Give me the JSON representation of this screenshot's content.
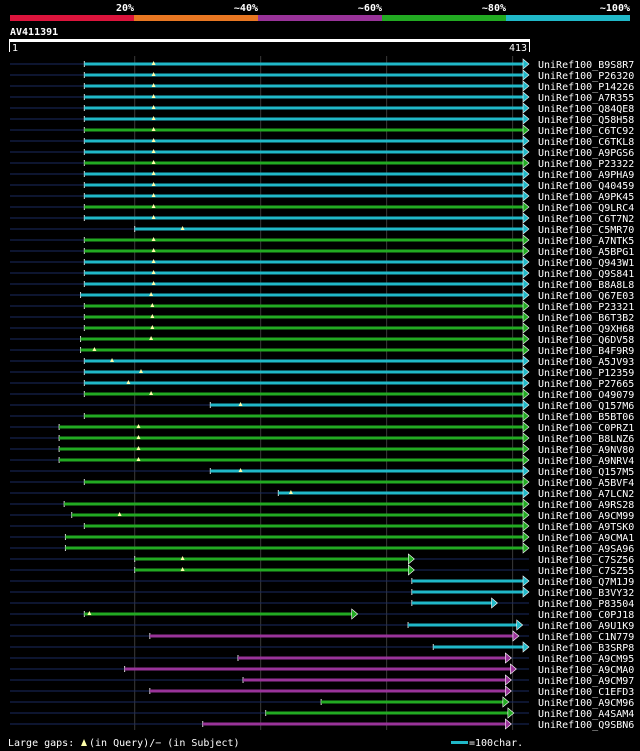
{
  "legend_bands": [
    {
      "label": "20%",
      "color": "#dc143c"
    },
    {
      "label": "~40%",
      "color": "#e87722"
    },
    {
      "label": "~60%",
      "color": "#993399"
    },
    {
      "label": "~80%",
      "color": "#22aa22"
    },
    {
      "label": "~100%",
      "color": "#20b8c8"
    }
  ],
  "chart_data": {
    "type": "alignment-overview",
    "query_id": "AV411391",
    "query_start": "1",
    "query_end": "413",
    "query_length": 413,
    "hits": [
      {
        "id": "UniRef100_B9S8R7",
        "start": 60,
        "end": 413,
        "cls": "c",
        "gap": 115
      },
      {
        "id": "UniRef100_P26320",
        "start": 60,
        "end": 413,
        "cls": "c",
        "gap": 115
      },
      {
        "id": "UniRef100_P14226",
        "start": 60,
        "end": 413,
        "cls": "c",
        "gap": 115
      },
      {
        "id": "UniRef100_A7R355",
        "start": 60,
        "end": 413,
        "cls": "c",
        "gap": 115
      },
      {
        "id": "UniRef100_Q84QE8",
        "start": 60,
        "end": 413,
        "cls": "c",
        "gap": 115
      },
      {
        "id": "UniRef100_Q58H58",
        "start": 60,
        "end": 413,
        "cls": "c",
        "gap": 115
      },
      {
        "id": "UniRef100_C6TC92",
        "start": 60,
        "end": 413,
        "cls": "g",
        "gap": 115
      },
      {
        "id": "UniRef100_C6TKL8",
        "start": 60,
        "end": 413,
        "cls": "c",
        "gap": 115
      },
      {
        "id": "UniRef100_A9PGS6",
        "start": 60,
        "end": 413,
        "cls": "c",
        "gap": 115
      },
      {
        "id": "UniRef100_P23322",
        "start": 60,
        "end": 413,
        "cls": "g",
        "gap": 115
      },
      {
        "id": "UniRef100_A9PHA9",
        "start": 60,
        "end": 413,
        "cls": "c",
        "gap": 115
      },
      {
        "id": "UniRef100_Q40459",
        "start": 60,
        "end": 413,
        "cls": "c",
        "gap": 115
      },
      {
        "id": "UniRef100_A9PK45",
        "start": 60,
        "end": 413,
        "cls": "c",
        "gap": 115
      },
      {
        "id": "UniRef100_Q9LRC4",
        "start": 60,
        "end": 413,
        "cls": "g",
        "gap": 115
      },
      {
        "id": "UniRef100_C6T7N2",
        "start": 60,
        "end": 413,
        "cls": "c",
        "gap": 115
      },
      {
        "id": "UniRef100_C5MR70",
        "start": 100,
        "end": 413,
        "cls": "c",
        "gap": 138
      },
      {
        "id": "UniRef100_A7NTK5",
        "start": 60,
        "end": 413,
        "cls": "g",
        "gap": 115
      },
      {
        "id": "UniRef100_A5BPG1",
        "start": 60,
        "end": 413,
        "cls": "g",
        "gap": 115
      },
      {
        "id": "UniRef100_Q943W1",
        "start": 60,
        "end": 413,
        "cls": "c",
        "gap": 115
      },
      {
        "id": "UniRef100_Q9S841",
        "start": 60,
        "end": 413,
        "cls": "c",
        "gap": 115
      },
      {
        "id": "UniRef100_B8A8L8",
        "start": 60,
        "end": 413,
        "cls": "c",
        "gap": 115
      },
      {
        "id": "UniRef100_Q67E03",
        "start": 57,
        "end": 413,
        "cls": "c",
        "gap": 113
      },
      {
        "id": "UniRef100_P23321",
        "start": 60,
        "end": 413,
        "cls": "g",
        "gap": 114
      },
      {
        "id": "UniRef100_B6T3B2",
        "start": 60,
        "end": 413,
        "cls": "g",
        "gap": 114
      },
      {
        "id": "UniRef100_Q9XH68",
        "start": 60,
        "end": 413,
        "cls": "g",
        "gap": 114
      },
      {
        "id": "UniRef100_Q6DV58",
        "start": 57,
        "end": 413,
        "cls": "g",
        "gap": 113
      },
      {
        "id": "UniRef100_B4F9R9",
        "start": 57,
        "end": 413,
        "cls": "g",
        "gap": 68
      },
      {
        "id": "UniRef100_A5JV93",
        "start": 60,
        "end": 413,
        "cls": "c",
        "gap": 82
      },
      {
        "id": "UniRef100_P12359",
        "start": 60,
        "end": 413,
        "cls": "c",
        "gap": 105
      },
      {
        "id": "UniRef100_P27665",
        "start": 60,
        "end": 413,
        "cls": "c",
        "gap": 95
      },
      {
        "id": "UniRef100_O49079",
        "start": 60,
        "end": 413,
        "cls": "g",
        "gap": 113
      },
      {
        "id": "UniRef100_Q157M6",
        "start": 160,
        "end": 413,
        "cls": "c",
        "gap": 184
      },
      {
        "id": "UniRef100_B5BT06",
        "start": 60,
        "end": 413,
        "cls": "g",
        "gap": null
      },
      {
        "id": "UniRef100_C0PRZ1",
        "start": 40,
        "end": 413,
        "cls": "g",
        "gap": 103
      },
      {
        "id": "UniRef100_B8LNZ6",
        "start": 40,
        "end": 413,
        "cls": "g",
        "gap": 103
      },
      {
        "id": "UniRef100_A9NV80",
        "start": 40,
        "end": 413,
        "cls": "g",
        "gap": 103
      },
      {
        "id": "UniRef100_A9NRV4",
        "start": 40,
        "end": 413,
        "cls": "g",
        "gap": 103
      },
      {
        "id": "UniRef100_Q157M5",
        "start": 160,
        "end": 413,
        "cls": "c",
        "gap": 184
      },
      {
        "id": "UniRef100_A5BVF4",
        "start": 60,
        "end": 413,
        "cls": "g",
        "gap": null
      },
      {
        "id": "UniRef100_A7LCN2",
        "start": 214,
        "end": 413,
        "cls": "c",
        "gap": 224
      },
      {
        "id": "UniRef100_A9RS28",
        "start": 44,
        "end": 413,
        "cls": "g",
        "gap": null
      },
      {
        "id": "UniRef100_A9CM99",
        "start": 50,
        "end": 413,
        "cls": "g",
        "gap": 88
      },
      {
        "id": "UniRef100_A9TSK0",
        "start": 60,
        "end": 413,
        "cls": "g",
        "gap": null
      },
      {
        "id": "UniRef100_A9CMA1",
        "start": 45,
        "end": 413,
        "cls": "g",
        "gap": null
      },
      {
        "id": "UniRef100_A9SA96",
        "start": 45,
        "end": 413,
        "cls": "g",
        "gap": null
      },
      {
        "id": "UniRef100_C7SZ56",
        "start": 100,
        "end": 322,
        "cls": "g",
        "gap": 138
      },
      {
        "id": "UniRef100_C7SZ55",
        "start": 100,
        "end": 322,
        "cls": "g",
        "gap": 138
      },
      {
        "id": "UniRef100_Q7M1J9",
        "start": 320,
        "end": 413,
        "cls": "c",
        "gap": null
      },
      {
        "id": "UniRef100_B3VY32",
        "start": 320,
        "end": 413,
        "cls": "c",
        "gap": null
      },
      {
        "id": "UniRef100_P83504",
        "start": 320,
        "end": 388,
        "cls": "c",
        "gap": null
      },
      {
        "id": "UniRef100_C0PJ18",
        "start": 60,
        "end": 277,
        "cls": "g",
        "gap": 64
      },
      {
        "id": "UniRef100_A9U1K9",
        "start": 317,
        "end": 408,
        "cls": "c",
        "gap": null
      },
      {
        "id": "UniRef100_C1N779",
        "start": 112,
        "end": 405,
        "cls": "p",
        "gap": null
      },
      {
        "id": "UniRef100_B3SRP8",
        "start": 337,
        "end": 413,
        "cls": "c",
        "gap": null
      },
      {
        "id": "UniRef100_A9CM95",
        "start": 182,
        "end": 399,
        "cls": "p",
        "gap": null
      },
      {
        "id": "UniRef100_A9CMA0",
        "start": 92,
        "end": 403,
        "cls": "p",
        "gap": null
      },
      {
        "id": "UniRef100_A9CM97",
        "start": 186,
        "end": 399,
        "cls": "p",
        "gap": null
      },
      {
        "id": "UniRef100_C1EFD3",
        "start": 112,
        "end": 399,
        "cls": "p",
        "gap": null
      },
      {
        "id": "UniRef100_A9CM96",
        "start": 248,
        "end": 397,
        "cls": "g",
        "gap": null
      },
      {
        "id": "UniRef100_A4SAM4",
        "start": 204,
        "end": 401,
        "cls": "g",
        "gap": null
      },
      {
        "id": "UniRef100_Q9SBN6",
        "start": 154,
        "end": 399,
        "cls": "p",
        "gap": null
      }
    ]
  },
  "footer": {
    "gaps_prefix": "Large gaps: ",
    "gaps_mid": "(in Query)/",
    "gaps_dash": "−",
    "gaps_suffix": " (in Subject)",
    "scale_label": "=100char."
  }
}
